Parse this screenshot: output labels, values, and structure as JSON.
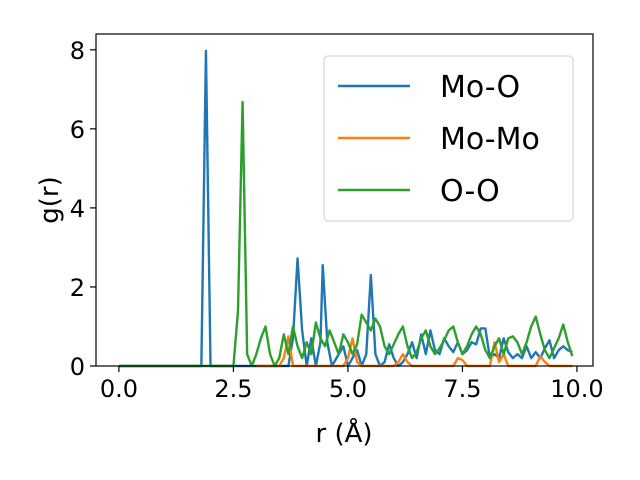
{
  "chart_data": {
    "type": "line",
    "title": "",
    "xlabel": "r (Å)",
    "ylabel": "g(r)",
    "xlim": [
      -0.5,
      10.35
    ],
    "ylim": [
      0,
      8.4
    ],
    "x_ticks": [
      0.0,
      2.5,
      5.0,
      7.5,
      10.0
    ],
    "x_tick_labels": [
      "0.0",
      "2.5",
      "5.0",
      "7.5",
      "10.0"
    ],
    "y_ticks": [
      0,
      2,
      4,
      6,
      8
    ],
    "y_tick_labels": [
      "0",
      "2",
      "4",
      "6",
      "8"
    ],
    "grid": false,
    "legend_position": "top-right",
    "series": [
      {
        "name": "Mo-O",
        "color": "#1f77b4",
        "points": [
          [
            0.0,
            0
          ],
          [
            1.8,
            0
          ],
          [
            1.9,
            7.97
          ],
          [
            2.0,
            0
          ],
          [
            3.7,
            0
          ],
          [
            3.8,
            0.7
          ],
          [
            3.9,
            2.72
          ],
          [
            4.0,
            0.9
          ],
          [
            4.1,
            0
          ],
          [
            4.2,
            0.7
          ],
          [
            4.3,
            0
          ],
          [
            4.4,
            0.6
          ],
          [
            4.45,
            2.55
          ],
          [
            4.55,
            0.6
          ],
          [
            4.65,
            0
          ],
          [
            4.8,
            0.3
          ],
          [
            4.9,
            0.5
          ],
          [
            5.0,
            0
          ],
          [
            5.2,
            0.4
          ],
          [
            5.3,
            0
          ],
          [
            5.4,
            0.3
          ],
          [
            5.5,
            2.3
          ],
          [
            5.6,
            0.3
          ],
          [
            5.7,
            0
          ],
          [
            5.8,
            0.1
          ],
          [
            5.9,
            0.55
          ],
          [
            6.0,
            0.2
          ],
          [
            6.1,
            0
          ],
          [
            6.2,
            0.1
          ],
          [
            6.3,
            0.3
          ],
          [
            6.4,
            0.6
          ],
          [
            6.5,
            0.2
          ],
          [
            6.6,
            0.8
          ],
          [
            6.7,
            0.3
          ],
          [
            6.8,
            0.9
          ],
          [
            6.9,
            0.4
          ],
          [
            7.0,
            0.3
          ],
          [
            7.1,
            0.7
          ],
          [
            7.2,
            0.5
          ],
          [
            7.3,
            0.35
          ],
          [
            7.4,
            0.6
          ],
          [
            7.5,
            0.3
          ],
          [
            7.6,
            0.4
          ],
          [
            7.7,
            0.6
          ],
          [
            7.8,
            0.55
          ],
          [
            7.9,
            0.95
          ],
          [
            8.0,
            0.95
          ],
          [
            8.1,
            0.2
          ],
          [
            8.2,
            0.3
          ],
          [
            8.3,
            0.2
          ],
          [
            8.4,
            0.7
          ],
          [
            8.5,
            0.35
          ],
          [
            8.6,
            0.2
          ],
          [
            8.7,
            0.3
          ],
          [
            8.8,
            0.2
          ],
          [
            8.9,
            0.5
          ],
          [
            9.0,
            0.2
          ],
          [
            9.1,
            0.35
          ],
          [
            9.2,
            0.2
          ],
          [
            9.3,
            0.45
          ],
          [
            9.4,
            0.65
          ],
          [
            9.5,
            0.2
          ],
          [
            9.6,
            0.4
          ],
          [
            9.7,
            0.5
          ],
          [
            9.8,
            0.4
          ],
          [
            9.9,
            0.35
          ]
        ]
      },
      {
        "name": "Mo-Mo",
        "color": "#ff7f0e",
        "points": [
          [
            3.0,
            0
          ],
          [
            3.5,
            0
          ],
          [
            3.6,
            0.2
          ],
          [
            3.7,
            0.75
          ],
          [
            3.8,
            0
          ],
          [
            4.9,
            0
          ],
          [
            5.0,
            0.2
          ],
          [
            5.1,
            0.7
          ],
          [
            5.2,
            0.1
          ],
          [
            5.3,
            0
          ],
          [
            6.0,
            0
          ],
          [
            6.1,
            0.1
          ],
          [
            6.2,
            0.3
          ],
          [
            6.3,
            0.1
          ],
          [
            6.4,
            0
          ],
          [
            7.3,
            0
          ],
          [
            7.4,
            0.2
          ],
          [
            7.5,
            0.15
          ],
          [
            7.6,
            0
          ],
          [
            8.1,
            0
          ],
          [
            8.2,
            0.6
          ],
          [
            8.3,
            0.1
          ],
          [
            8.4,
            0.3
          ],
          [
            8.5,
            0
          ],
          [
            9.1,
            0
          ],
          [
            9.2,
            0.25
          ],
          [
            9.3,
            0.1
          ],
          [
            9.4,
            0
          ],
          [
            9.9,
            0
          ]
        ]
      },
      {
        "name": "O-O",
        "color": "#2ca02c",
        "points": [
          [
            0.0,
            0
          ],
          [
            2.5,
            0
          ],
          [
            2.6,
            1.4
          ],
          [
            2.7,
            6.68
          ],
          [
            2.8,
            0.3
          ],
          [
            2.9,
            0
          ],
          [
            3.0,
            0.3
          ],
          [
            3.1,
            0.7
          ],
          [
            3.2,
            1.0
          ],
          [
            3.3,
            0.3
          ],
          [
            3.4,
            0
          ],
          [
            3.5,
            0.2
          ],
          [
            3.6,
            0.8
          ],
          [
            3.7,
            0.3
          ],
          [
            3.8,
            1.0
          ],
          [
            3.9,
            0.5
          ],
          [
            4.0,
            0.2
          ],
          [
            4.1,
            0.6
          ],
          [
            4.2,
            0.3
          ],
          [
            4.3,
            1.1
          ],
          [
            4.4,
            0.7
          ],
          [
            4.5,
            0.5
          ],
          [
            4.6,
            0.9
          ],
          [
            4.7,
            0.6
          ],
          [
            4.8,
            0.3
          ],
          [
            4.9,
            0.8
          ],
          [
            5.0,
            0.6
          ],
          [
            5.1,
            0.3
          ],
          [
            5.2,
            0.55
          ],
          [
            5.3,
            1.3
          ],
          [
            5.4,
            1.1
          ],
          [
            5.5,
            0.9
          ],
          [
            5.6,
            1.2
          ],
          [
            5.7,
            1.0
          ],
          [
            5.8,
            0.5
          ],
          [
            5.9,
            0.3
          ],
          [
            6.0,
            0.55
          ],
          [
            6.1,
            0.8
          ],
          [
            6.2,
            1.0
          ],
          [
            6.3,
            0.5
          ],
          [
            6.4,
            0.2
          ],
          [
            6.5,
            0.35
          ],
          [
            6.6,
            0.7
          ],
          [
            6.7,
            0.9
          ],
          [
            6.8,
            0.5
          ],
          [
            6.9,
            0.3
          ],
          [
            7.0,
            0.45
          ],
          [
            7.1,
            0.65
          ],
          [
            7.2,
            0.9
          ],
          [
            7.3,
            1.0
          ],
          [
            7.4,
            0.6
          ],
          [
            7.5,
            0.3
          ],
          [
            7.6,
            0.5
          ],
          [
            7.7,
            0.8
          ],
          [
            7.8,
            1.0
          ],
          [
            7.9,
            0.8
          ],
          [
            8.0,
            0.4
          ],
          [
            8.1,
            0.2
          ],
          [
            8.2,
            0.5
          ],
          [
            8.3,
            0.7
          ],
          [
            8.4,
            0.3
          ],
          [
            8.5,
            0.7
          ],
          [
            8.6,
            0.75
          ],
          [
            8.7,
            0.6
          ],
          [
            8.8,
            0.3
          ],
          [
            8.9,
            0.6
          ],
          [
            9.0,
            1.0
          ],
          [
            9.1,
            1.25
          ],
          [
            9.2,
            0.8
          ],
          [
            9.3,
            0.4
          ],
          [
            9.4,
            0.2
          ],
          [
            9.5,
            0.45
          ],
          [
            9.6,
            0.7
          ],
          [
            9.7,
            1.05
          ],
          [
            9.8,
            0.6
          ],
          [
            9.9,
            0.25
          ]
        ]
      }
    ]
  }
}
